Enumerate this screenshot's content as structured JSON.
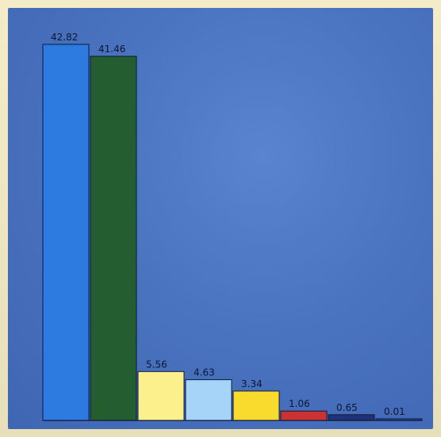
{
  "chart_data": {
    "type": "bar",
    "title": "",
    "xlabel": "",
    "ylabel": "",
    "ylim": [
      0,
      42.82
    ],
    "grid": false,
    "legend": "none",
    "values": [
      42.82,
      41.46,
      5.56,
      4.63,
      3.34,
      1.06,
      0.65,
      0.01
    ],
    "labels": [
      "42.82",
      "41.46",
      "5.56",
      "4.63",
      "3.34",
      "1.06",
      "0.65",
      "0.01"
    ],
    "colors": [
      "#2d7be0",
      "#245e30",
      "#fbf08c",
      "#a5d4f8",
      "#f8db2c",
      "#cc3232",
      "#1e3276",
      "#2a4ea0"
    ]
  }
}
